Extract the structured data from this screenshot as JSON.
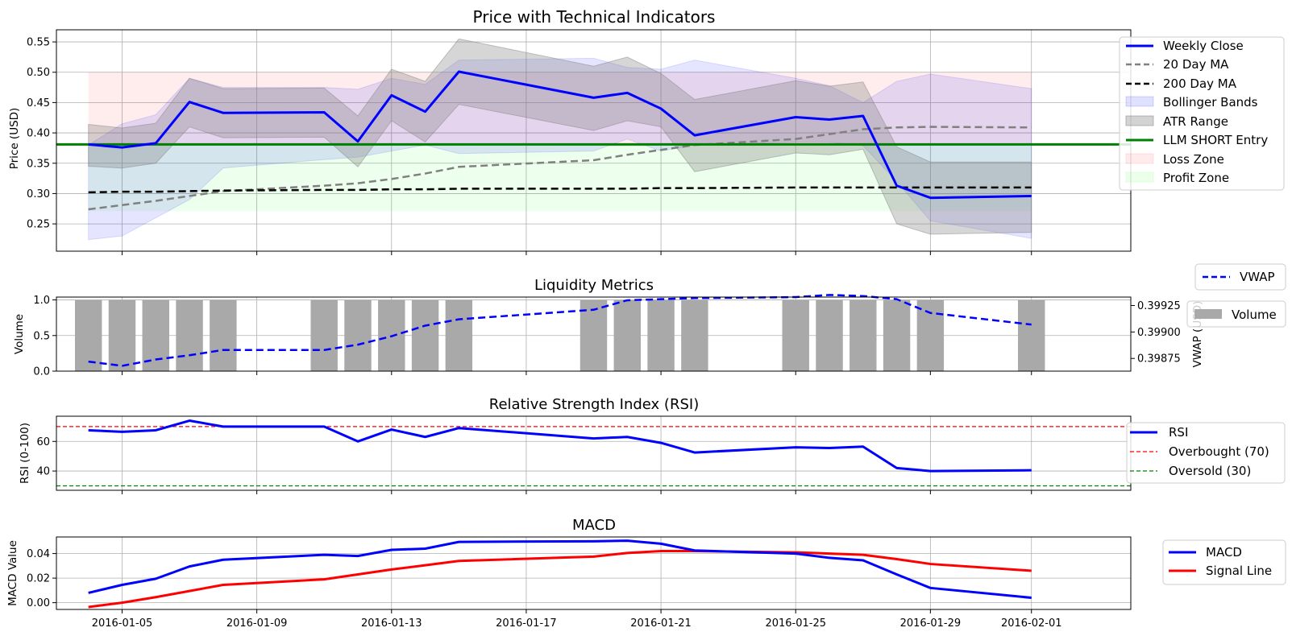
{
  "dates": [
    "2016-01-04",
    "2016-01-05",
    "2016-01-06",
    "2016-01-07",
    "2016-01-08",
    "2016-01-11",
    "2016-01-12",
    "2016-01-13",
    "2016-01-14",
    "2016-01-15",
    "2016-01-19",
    "2016-01-20",
    "2016-01-21",
    "2016-01-22",
    "2016-01-25",
    "2016-01-26",
    "2016-01-27",
    "2016-01-28",
    "2016-01-29",
    "2016-02-01"
  ],
  "x_ticks": [
    "2016-01-05",
    "2016-01-09",
    "2016-01-13",
    "2016-01-17",
    "2016-01-21",
    "2016-01-25",
    "2016-01-29",
    "2016-02-01"
  ],
  "chart_data": [
    {
      "type": "line",
      "title": "Price with Technical Indicators",
      "ylabel": "Price (USD)",
      "ylim": [
        0.205,
        0.57
      ],
      "yticks": [
        "0.25",
        "0.30",
        "0.35",
        "0.40",
        "0.45",
        "0.50",
        "0.55"
      ],
      "grid": true,
      "legend_placement": "right",
      "series": [
        {
          "name": "Weekly Close",
          "color": "#0000ff",
          "style": "solid",
          "values": [
            0.381,
            0.376,
            0.383,
            0.451,
            0.433,
            0.434,
            0.386,
            0.462,
            0.435,
            0.501,
            0.458,
            0.466,
            0.44,
            0.396,
            0.426,
            0.422,
            0.428,
            0.313,
            0.293,
            0.296
          ]
        },
        {
          "name": "20 Day MA",
          "color": "#808080",
          "style": "dashed",
          "values": [
            0.274,
            0.281,
            0.288,
            0.296,
            0.304,
            0.313,
            0.317,
            0.324,
            0.333,
            0.344,
            0.355,
            0.364,
            0.372,
            0.38,
            0.39,
            0.398,
            0.406,
            0.409,
            0.41,
            0.409
          ]
        },
        {
          "name": "200 Day MA",
          "color": "#000000",
          "style": "dashed",
          "values": [
            0.302,
            0.303,
            0.303,
            0.304,
            0.305,
            0.306,
            0.306,
            0.307,
            0.307,
            0.308,
            0.308,
            0.308,
            0.309,
            0.309,
            0.31,
            0.31,
            0.31,
            0.31,
            0.31,
            0.31
          ]
        },
        {
          "name": "LLM SHORT Entry",
          "color": "#008000",
          "style": "solid",
          "value": 0.381
        }
      ],
      "bands": [
        {
          "name": "Bollinger Bands",
          "color": "#0000ff",
          "upper": [
            0.38,
            0.415,
            0.43,
            0.49,
            0.475,
            0.475,
            0.472,
            0.49,
            0.48,
            0.52,
            0.523,
            0.508,
            0.505,
            0.52,
            0.49,
            0.478,
            0.45,
            0.485,
            0.497,
            0.473
          ],
          "lower": [
            0.224,
            0.23,
            0.26,
            0.29,
            0.342,
            0.356,
            0.36,
            0.37,
            0.38,
            0.366,
            0.37,
            0.39,
            0.37,
            0.38,
            0.385,
            0.385,
            0.379,
            0.32,
            0.255,
            0.226
          ]
        },
        {
          "name": "ATR Range",
          "color": "#808080",
          "upper": [
            0.414,
            0.408,
            0.416,
            0.49,
            0.473,
            0.474,
            0.428,
            0.505,
            0.485,
            0.555,
            0.51,
            0.525,
            0.498,
            0.455,
            0.486,
            0.477,
            0.484,
            0.377,
            0.352,
            0.352
          ],
          "lower": [
            0.345,
            0.342,
            0.35,
            0.41,
            0.392,
            0.393,
            0.344,
            0.42,
            0.385,
            0.447,
            0.404,
            0.42,
            0.41,
            0.336,
            0.367,
            0.364,
            0.373,
            0.25,
            0.233,
            0.236
          ]
        }
      ],
      "zones": [
        {
          "name": "Loss Zone",
          "color": "#ff0000",
          "from": 0.381,
          "to": 0.5
        },
        {
          "name": "Profit Zone",
          "color": "#00ff00",
          "from": 0.271,
          "to": 0.381
        }
      ]
    },
    {
      "type": "bar",
      "title": "Liquidity Metrics",
      "ylabel": "Volume",
      "y2label": "VWAP (USD)",
      "ylim": [
        0,
        1.04
      ],
      "yticks": [
        "0.0",
        "0.5",
        "1.0"
      ],
      "y2lim": [
        0.39863,
        0.39933
      ],
      "y2ticks": [
        "0.39875",
        "0.39900",
        "0.39925"
      ],
      "grid": true,
      "series": [
        {
          "name": "Volume",
          "color": "#a9a9a9",
          "values": [
            1,
            1,
            1,
            1,
            1,
            1,
            1,
            1,
            1,
            1,
            1,
            1,
            1,
            1,
            1,
            1,
            1,
            1,
            1,
            1
          ]
        },
        {
          "name": "VWAP",
          "color": "#0000ff",
          "style": "dashed",
          "values": [
            0.39872,
            0.39868,
            0.39874,
            0.39878,
            0.39883,
            0.39883,
            0.39888,
            0.39896,
            0.39906,
            0.39912,
            0.39921,
            0.3993,
            0.39931,
            0.39932,
            0.39933,
            0.39935,
            0.39934,
            0.39931,
            0.39918,
            0.39907
          ]
        }
      ]
    },
    {
      "type": "line",
      "title": "Relative Strength Index (RSI)",
      "ylabel": "RSI (0-100)",
      "ylim": [
        27,
        77
      ],
      "yticks": [
        "40",
        "60"
      ],
      "grid": true,
      "series": [
        {
          "name": "RSI",
          "color": "#0000ff",
          "style": "solid",
          "values": [
            67.5,
            66.5,
            67.5,
            74,
            70,
            70,
            60,
            68,
            63,
            69,
            62,
            63,
            59,
            52.5,
            56,
            55.5,
            56.5,
            42,
            40,
            40.5
          ]
        },
        {
          "name": "Overbought (70)",
          "color": "#ff0000",
          "style": "dashed",
          "value": 70
        },
        {
          "name": "Oversold (30)",
          "color": "#008000",
          "style": "dashed",
          "value": 30
        }
      ]
    },
    {
      "type": "line",
      "title": "MACD",
      "ylabel": "MACD Value",
      "ylim": [
        -0.0055,
        0.0535
      ],
      "yticks": [
        "0.00",
        "0.02",
        "0.04"
      ],
      "grid": true,
      "series": [
        {
          "name": "MACD",
          "color": "#0000ff",
          "style": "solid",
          "values": [
            0.008,
            0.0145,
            0.0195,
            0.0295,
            0.035,
            0.039,
            0.038,
            0.043,
            0.044,
            0.0495,
            0.05,
            0.0505,
            0.048,
            0.0425,
            0.04,
            0.0365,
            0.0345,
            0.023,
            0.012,
            0.004
          ]
        },
        {
          "name": "Signal Line",
          "color": "#ff0000",
          "style": "solid",
          "values": [
            -0.0035,
            0.0,
            0.0045,
            0.0095,
            0.0145,
            0.019,
            0.023,
            0.027,
            0.0305,
            0.034,
            0.0375,
            0.0405,
            0.042,
            0.042,
            0.041,
            0.04,
            0.039,
            0.0355,
            0.0315,
            0.026
          ]
        }
      ]
    }
  ]
}
